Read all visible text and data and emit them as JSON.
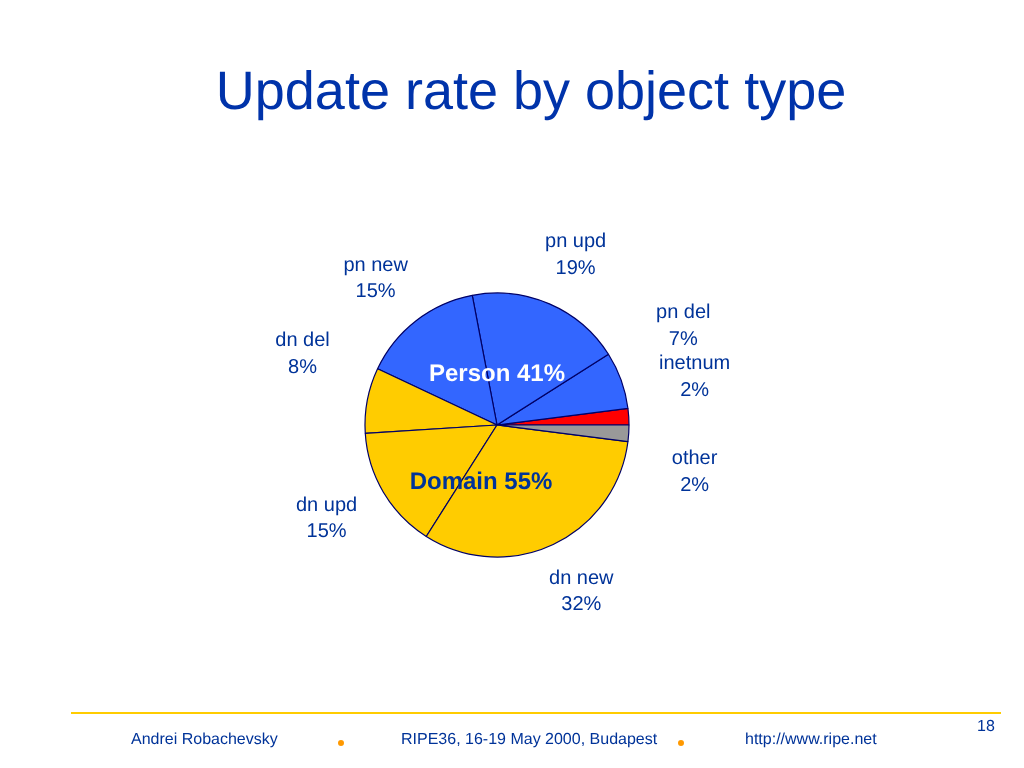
{
  "chart_data": {
    "type": "pie",
    "title": "Update rate by object type",
    "categories": [
      "inetnum",
      "pn del",
      "pn upd",
      "pn new",
      "dn del",
      "dn upd",
      "dn new",
      "other"
    ],
    "values": [
      2,
      7,
      19,
      15,
      8,
      15,
      32,
      2
    ],
    "colors": [
      "#ff0000",
      "#3366ff",
      "#3366ff",
      "#3366ff",
      "#ffcc00",
      "#ffcc00",
      "#ffcc00",
      "#999999"
    ],
    "value_labels": [
      "2%",
      "7%",
      "19%",
      "15%",
      "8%",
      "15%",
      "32%",
      "2%"
    ],
    "annotations": [
      "Person 41%",
      "Domain 55%",
      "Andrei Robachevsky",
      "RIPE36, 16-19 May 2000, Budapest",
      "http://www.ripe.net",
      "18"
    ]
  }
}
